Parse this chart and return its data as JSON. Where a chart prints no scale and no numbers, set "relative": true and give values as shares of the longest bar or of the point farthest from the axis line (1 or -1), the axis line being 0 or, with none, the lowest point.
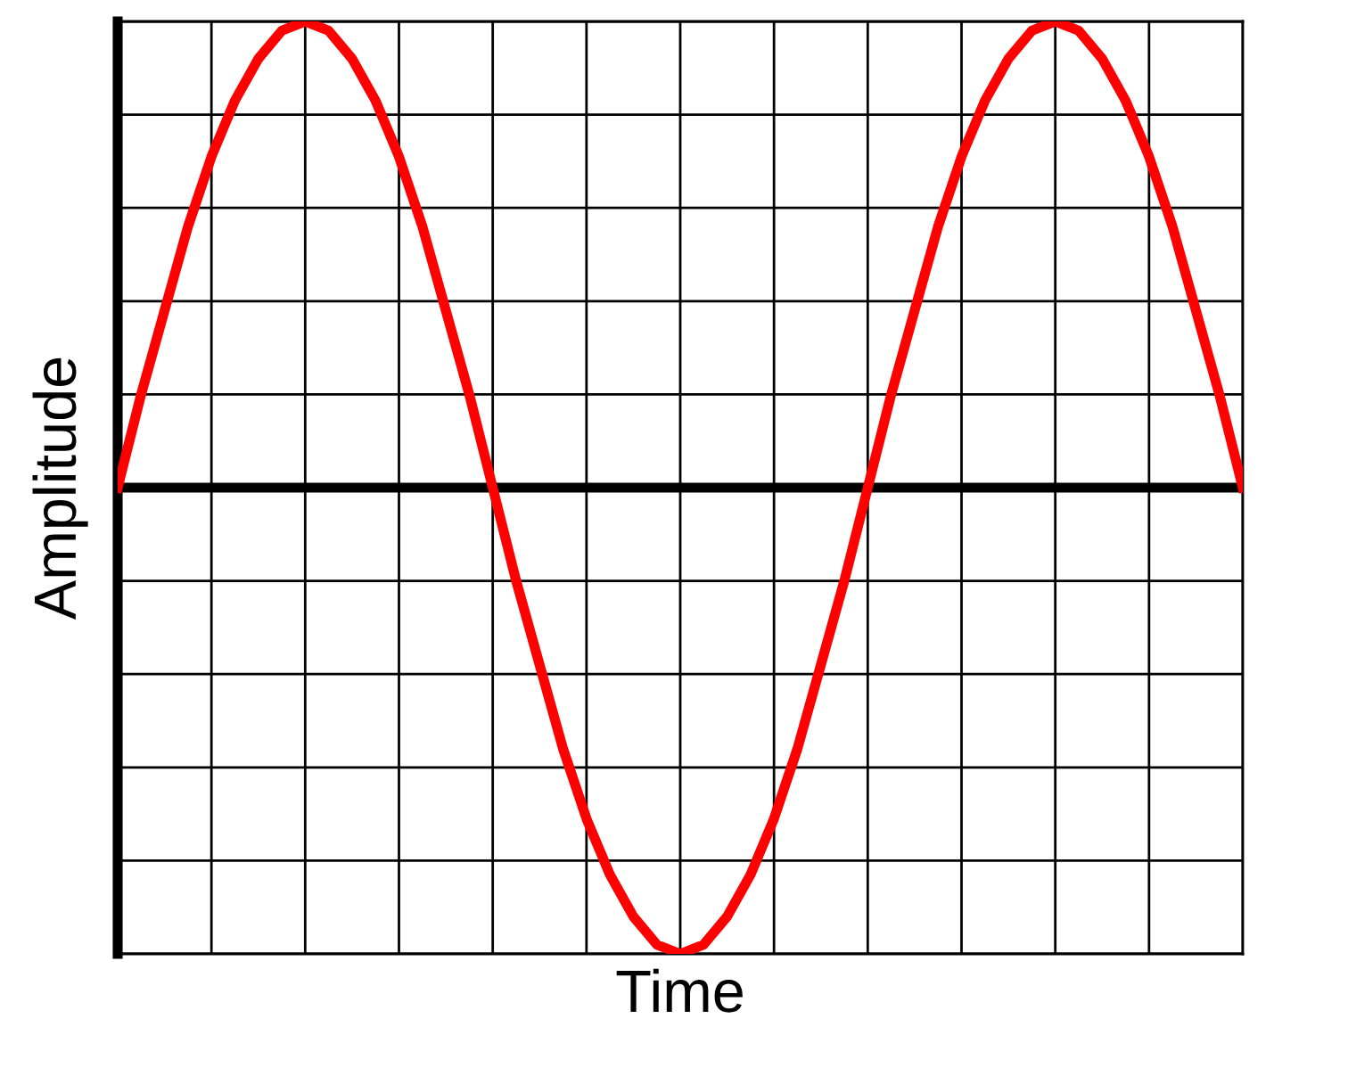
{
  "chart_data": {
    "type": "line",
    "relative": true,
    "xlabel": "Time",
    "ylabel": "Amplitude",
    "categories": [
      null,
      null,
      null,
      null,
      null,
      null,
      null,
      null,
      null,
      null,
      null,
      null,
      null,
      null,
      null,
      null,
      null,
      null,
      null,
      null,
      null,
      null,
      null,
      null,
      null,
      null,
      null,
      null,
      null,
      null,
      null,
      null,
      null,
      null,
      null,
      null,
      null,
      null,
      null,
      null,
      null,
      null,
      null,
      null,
      null,
      null,
      null,
      null,
      null
    ],
    "series": [
      {
        "color": "#ff0000",
        "values": [
          0,
          0.2,
          0.38,
          0.56,
          0.71,
          0.83,
          0.92,
          0.98,
          1,
          0.98,
          0.92,
          0.83,
          0.71,
          0.56,
          0.38,
          0.2,
          0,
          -0.2,
          -0.38,
          -0.56,
          -0.71,
          -0.83,
          -0.92,
          -0.98,
          -1,
          -0.98,
          -0.92,
          -0.83,
          -0.71,
          -0.56,
          -0.38,
          -0.2,
          0,
          0.2,
          0.38,
          0.56,
          0.71,
          0.83,
          0.92,
          0.98,
          1,
          0.98,
          0.92,
          0.83,
          0.71,
          0.56,
          0.38,
          0.2,
          0
        ]
      }
    ],
    "grid": true,
    "tick_labels": false,
    "marker": "none",
    "line_style": "solid"
  }
}
